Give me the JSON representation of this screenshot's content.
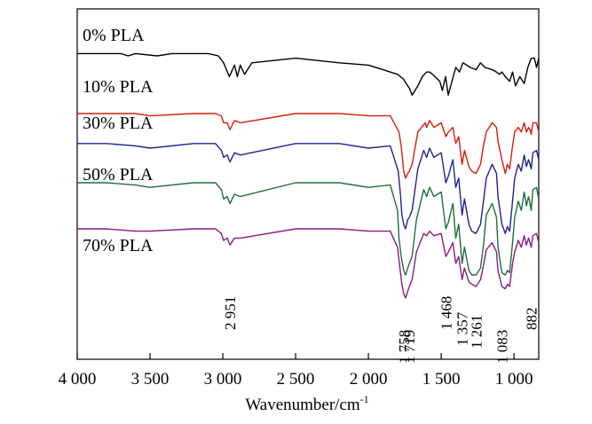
{
  "chart_data": {
    "type": "line",
    "xlabel": "Wavenumber/cm",
    "xlabel_superscript": "-1",
    "xlim": [
      4000,
      830
    ],
    "x_ticks": [
      4000,
      3500,
      3000,
      2500,
      2000,
      1500,
      1000
    ],
    "x_tick_labels": [
      "4 000",
      "3 500",
      "3 000",
      "2 500",
      "2 000",
      "1 500",
      "1 000"
    ],
    "y_ticks_shown": false,
    "grid": false,
    "series": [
      {
        "name": "0% PLA",
        "color": "#000000",
        "x": [
          4000,
          3700,
          3650,
          3600,
          3450,
          3350,
          3100,
          3030,
          2995,
          2955,
          2920,
          2900,
          2880,
          2850,
          2800,
          2500,
          2200,
          2000,
          1900,
          1800,
          1760,
          1730,
          1719,
          1700,
          1660,
          1630,
          1600,
          1580,
          1560,
          1510,
          1492,
          1470,
          1452,
          1400,
          1375,
          1350,
          1300,
          1260,
          1230,
          1200,
          1150,
          1120,
          1100,
          1083,
          1060,
          1030,
          1010,
          990,
          960,
          930,
          905,
          882,
          860,
          845,
          830
        ],
        "y": [
          96,
          96,
          95,
          96,
          95,
          96,
          96,
          95,
          92,
          86,
          91,
          86,
          91,
          87,
          92,
          94,
          92,
          91,
          89,
          87,
          85,
          82,
          81,
          78,
          82,
          86,
          88,
          88,
          87,
          84,
          80,
          86,
          78,
          90,
          88,
          92,
          90,
          89,
          92,
          90,
          89,
          88,
          87,
          88,
          86,
          84,
          88,
          82,
          86,
          83,
          90,
          94,
          94,
          90,
          94
        ]
      },
      {
        "name": "10% PLA",
        "color": "#d21e0c",
        "x": [
          4000,
          3800,
          3600,
          3500,
          3200,
          3050,
          3010,
          2995,
          2970,
          2951,
          2920,
          2880,
          2500,
          2200,
          2000,
          1850,
          1790,
          1775,
          1765,
          1758,
          1745,
          1730,
          1719,
          1700,
          1660,
          1610,
          1600,
          1580,
          1550,
          1500,
          1468,
          1450,
          1420,
          1400,
          1380,
          1357,
          1340,
          1310,
          1290,
          1261,
          1230,
          1210,
          1190,
          1150,
          1120,
          1110,
          1083,
          1060,
          1045,
          1030,
          1010,
          995,
          970,
          950,
          930,
          915,
          900,
          890,
          882,
          870,
          845,
          830
        ],
        "y": [
          70,
          70,
          70,
          69,
          70,
          70,
          69,
          66,
          66,
          63,
          67,
          66,
          70,
          70,
          69,
          69,
          62,
          56,
          50,
          45,
          42,
          44,
          45,
          48,
          62,
          66,
          64,
          67,
          64,
          66,
          60,
          62,
          64,
          57,
          60,
          48,
          54,
          47,
          45,
          44,
          48,
          56,
          62,
          66,
          64,
          58,
          50,
          44,
          48,
          46,
          56,
          62,
          64,
          62,
          66,
          62,
          64,
          63,
          61,
          66,
          66,
          62
        ]
      },
      {
        "name": "30% PLA",
        "color": "#1f2390",
        "x": [
          4000,
          3800,
          3600,
          3500,
          3200,
          3050,
          3010,
          2995,
          2970,
          2951,
          2920,
          2880,
          2500,
          2200,
          2000,
          1850,
          1795,
          1780,
          1770,
          1758,
          1745,
          1730,
          1719,
          1700,
          1660,
          1620,
          1600,
          1580,
          1550,
          1500,
          1468,
          1450,
          1420,
          1400,
          1380,
          1357,
          1340,
          1310,
          1290,
          1261,
          1230,
          1210,
          1190,
          1150,
          1120,
          1110,
          1083,
          1060,
          1045,
          1030,
          1010,
          995,
          970,
          950,
          930,
          915,
          900,
          890,
          882,
          870,
          845,
          830
        ],
        "y": [
          57,
          57,
          56,
          55,
          57,
          57,
          54,
          51,
          52,
          49,
          53,
          52,
          57,
          57,
          55,
          56,
          45,
          35,
          26,
          22,
          20,
          24,
          25,
          28,
          46,
          54,
          51,
          55,
          51,
          53,
          40,
          43,
          50,
          38,
          42,
          26,
          33,
          22,
          19,
          18,
          22,
          32,
          42,
          48,
          44,
          34,
          22,
          18,
          21,
          19,
          32,
          42,
          48,
          45,
          52,
          47,
          50,
          48,
          46,
          53,
          54,
          50
        ]
      },
      {
        "name": "50% PLA",
        "color": "#1c6f3a",
        "x": [
          4000,
          3800,
          3600,
          3500,
          3200,
          3050,
          3010,
          2995,
          2970,
          2951,
          2920,
          2880,
          2500,
          2200,
          2000,
          1850,
          1800,
          1790,
          1775,
          1758,
          1745,
          1730,
          1719,
          1700,
          1670,
          1620,
          1600,
          1580,
          1550,
          1500,
          1468,
          1450,
          1420,
          1400,
          1380,
          1357,
          1340,
          1310,
          1290,
          1261,
          1230,
          1210,
          1190,
          1150,
          1120,
          1110,
          1083,
          1060,
          1045,
          1030,
          1010,
          995,
          970,
          950,
          930,
          915,
          900,
          890,
          882,
          870,
          845,
          830
        ],
        "y": [
          40,
          40,
          39,
          38,
          40,
          40,
          37,
          33,
          34,
          31,
          35,
          34,
          40,
          40,
          38,
          39,
          28,
          16,
          8,
          2,
          0,
          3,
          5,
          8,
          24,
          37,
          34,
          38,
          34,
          36,
          20,
          23,
          31,
          16,
          22,
          5,
          12,
          2,
          0,
          0,
          3,
          13,
          26,
          31,
          25,
          12,
          1,
          0,
          2,
          1,
          14,
          25,
          32,
          28,
          36,
          30,
          34,
          31,
          28,
          37,
          38,
          33
        ]
      },
      {
        "name": "70% PLA",
        "color": "#8b1a7f",
        "x": [
          4000,
          3800,
          3600,
          3500,
          3200,
          3050,
          3010,
          2995,
          2970,
          2951,
          2920,
          2880,
          2500,
          2200,
          2000,
          1850,
          1800,
          1785,
          1770,
          1758,
          1745,
          1730,
          1719,
          1700,
          1670,
          1620,
          1600,
          1580,
          1550,
          1500,
          1468,
          1450,
          1420,
          1400,
          1380,
          1357,
          1340,
          1310,
          1290,
          1261,
          1230,
          1210,
          1190,
          1150,
          1120,
          1110,
          1083,
          1060,
          1045,
          1030,
          1010,
          995,
          970,
          950,
          930,
          915,
          900,
          890,
          882,
          870,
          845,
          830
        ],
        "y": [
          20,
          20,
          19,
          19,
          20,
          20,
          18,
          15,
          16,
          13,
          16,
          16,
          20,
          20,
          19,
          19,
          12,
          4,
          -4,
          -8,
          -10,
          -7,
          -5,
          -2,
          10,
          18,
          17,
          19,
          17,
          18,
          8,
          10,
          14,
          5,
          8,
          -2,
          3,
          -3,
          -4,
          -5,
          -2,
          4,
          11,
          14,
          10,
          2,
          -5,
          -6,
          -4,
          -5,
          5,
          10,
          15,
          12,
          17,
          13,
          16,
          14,
          12,
          17,
          18,
          14
        ]
      }
    ],
    "series_label_text": [
      "0% PLA",
      "10% PLA",
      "30% PLA",
      "50% PLA",
      "70% PLA"
    ],
    "annotations": [
      {
        "text": "2 951",
        "x": 2951
      },
      {
        "text": "1 758",
        "x": 1758
      },
      {
        "text": "1 719",
        "x": 1719
      },
      {
        "text": "1 468",
        "x": 1468
      },
      {
        "text": "1 357",
        "x": 1357
      },
      {
        "text": "1 261",
        "x": 1261
      },
      {
        "text": "1 083",
        "x": 1083
      },
      {
        "text": "882",
        "x": 882
      }
    ]
  }
}
